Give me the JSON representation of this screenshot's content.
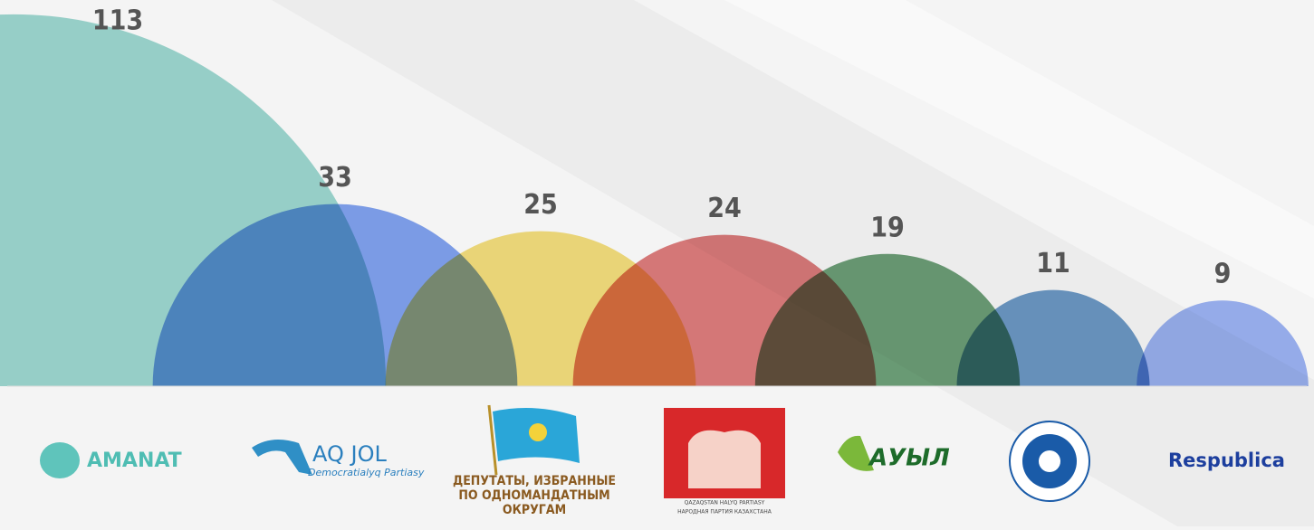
{
  "chart_data": {
    "type": "semicircle",
    "categories": [
      "AMANAT",
      "AQ JOL",
      "ДЕПУТАТЫ, ИЗБРАННЫЕ ПО ОДНОМАНДАТНЫМ ОКРУГАМ",
      "QAZAQSTAN HALYQ PARTIASY",
      "АУЫЛ",
      null,
      "Respublica"
    ],
    "category_sublabels": [
      null,
      "Democratialyq Partiasy",
      null,
      "НАРОДНАЯ ПАРТИЯ КАЗАХСТАНА",
      null,
      null,
      null
    ],
    "values": [
      113,
      33,
      25,
      24,
      19,
      11,
      9
    ],
    "colors": [
      "#8fd3ca",
      "#6f95ee",
      "#f3d96a",
      "#d96a6a",
      "#5a9466",
      "#5a8ec2",
      "#8ea8f2"
    ]
  }
}
